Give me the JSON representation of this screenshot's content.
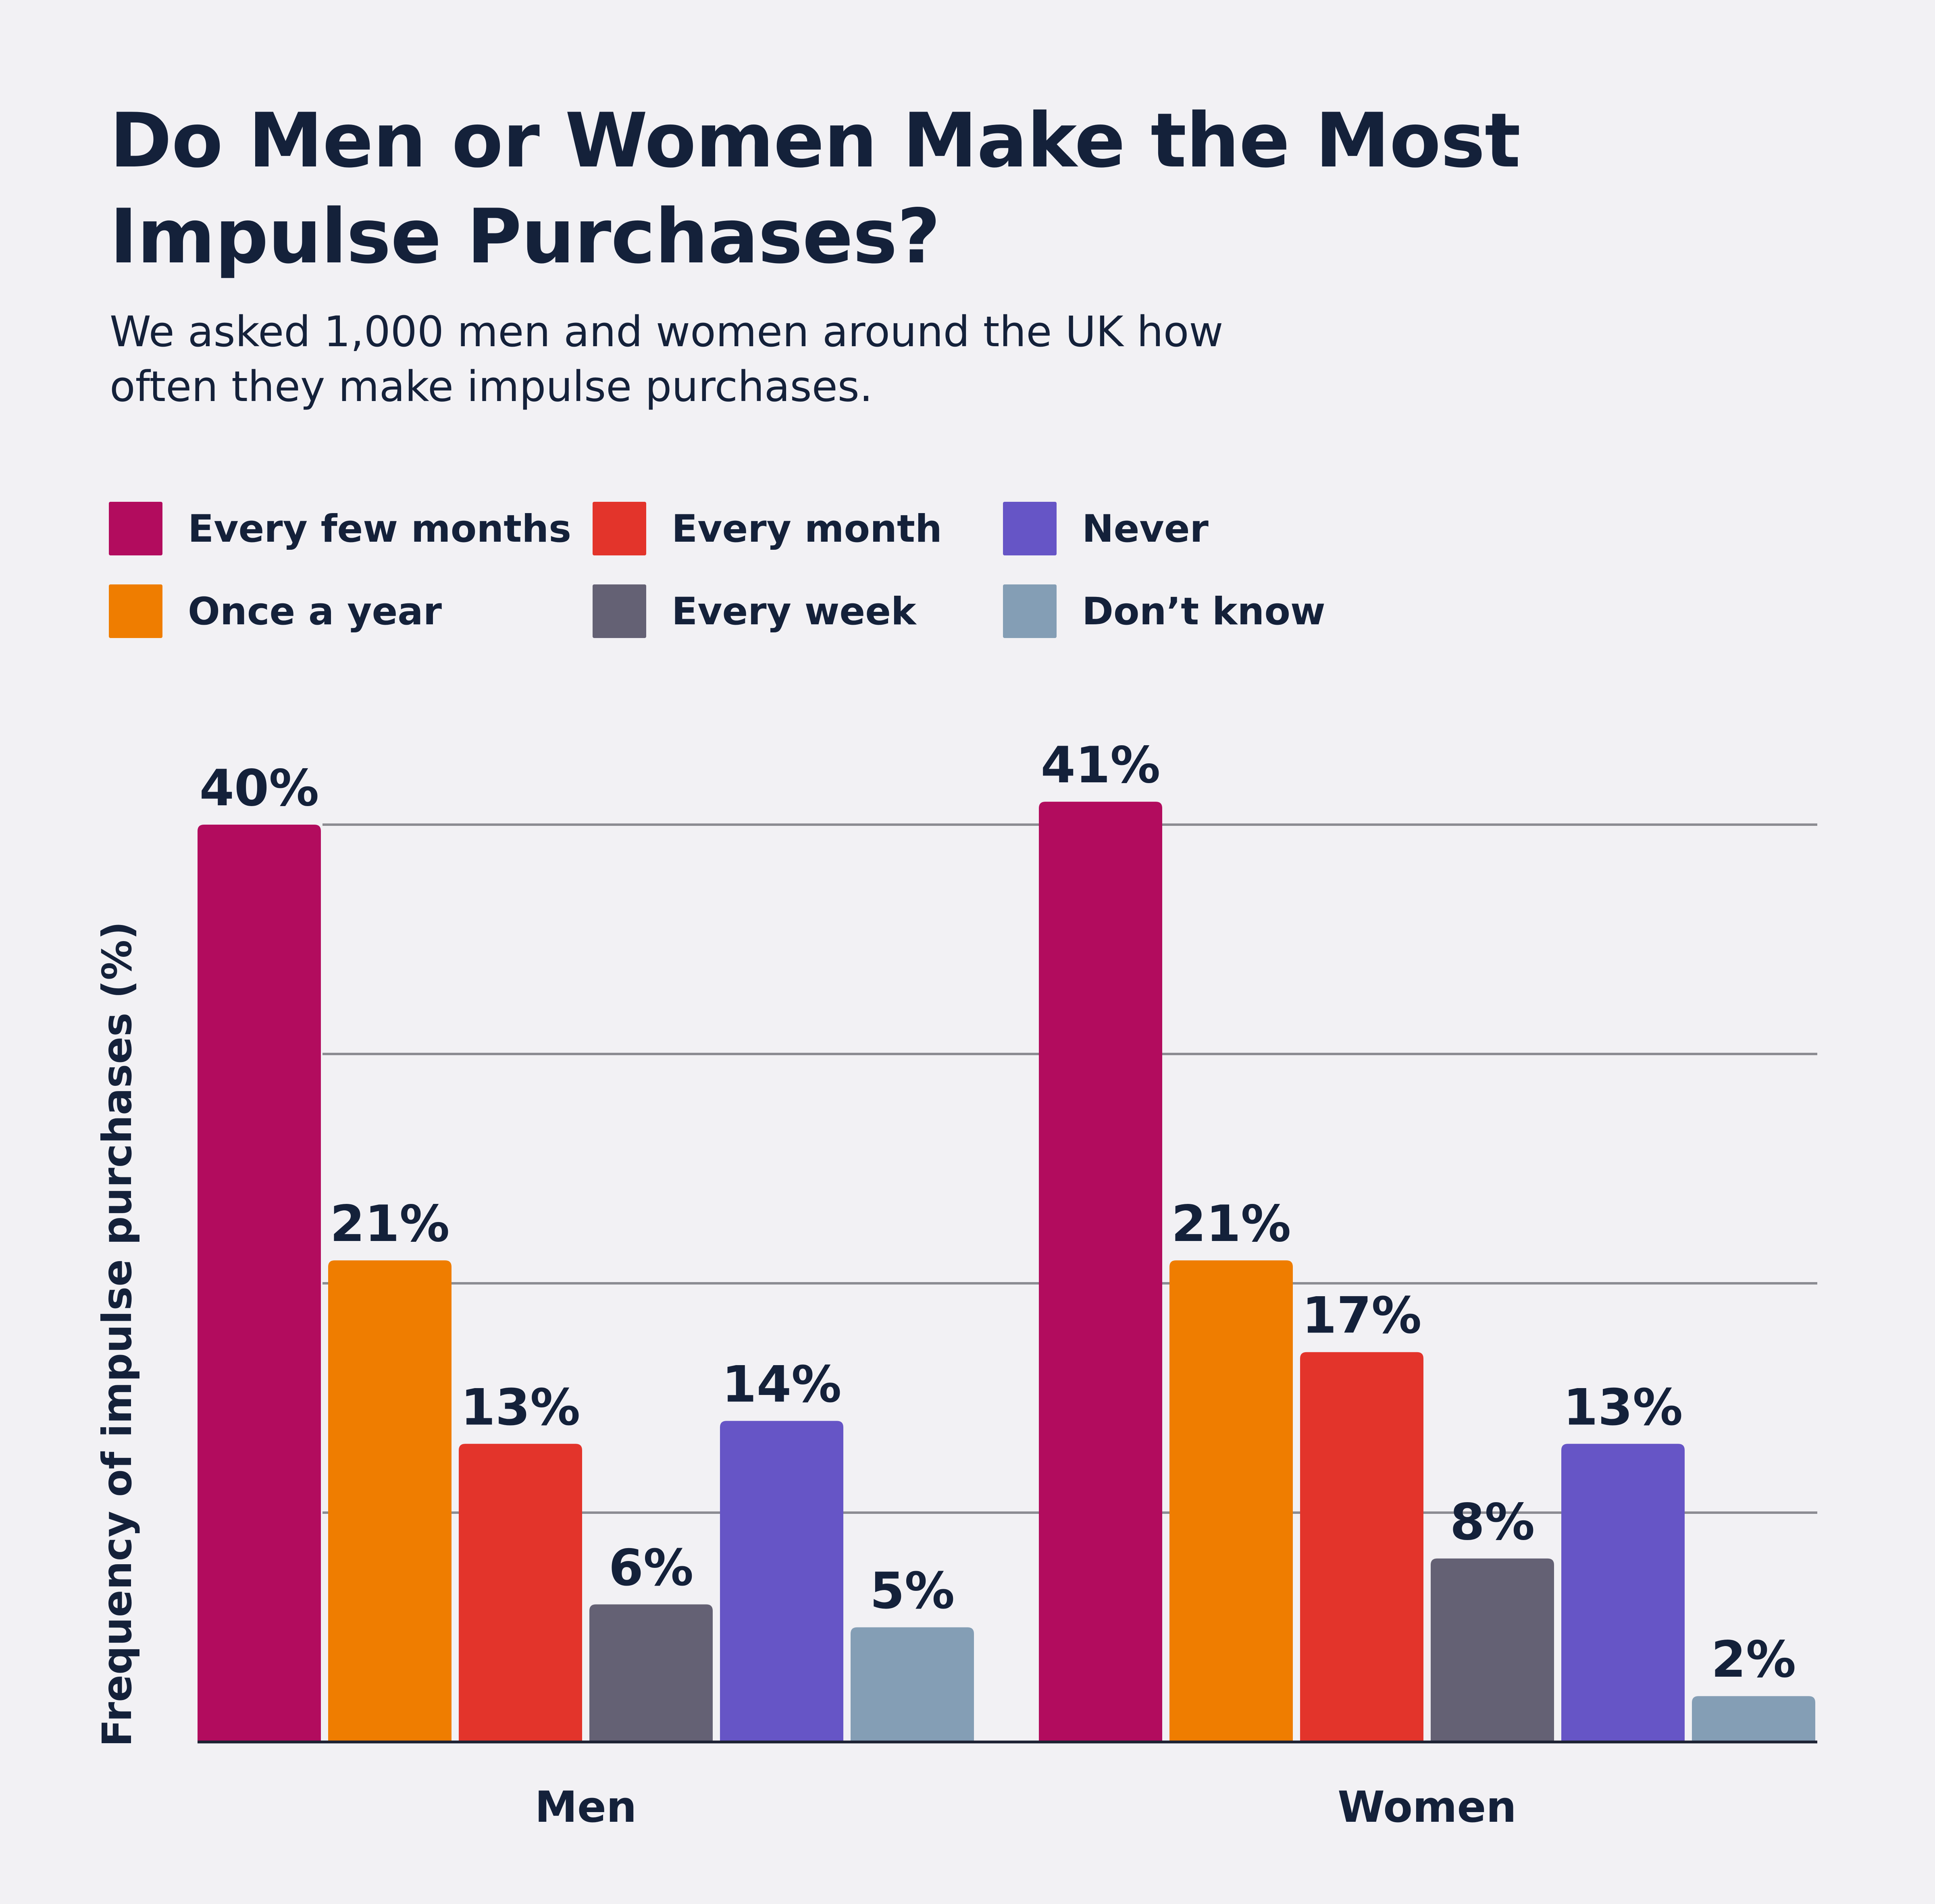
{
  "chart_data": {
    "type": "bar",
    "title": "Do Men or Women Make the Most Impulse Purchases?",
    "subtitle": "We asked 1,000 men and women around the UK how often they make impulse purchases.",
    "xlabel": "",
    "ylabel": "Frequency of impulse purchases (%)",
    "categories": [
      "Men",
      "Women"
    ],
    "series": [
      {
        "name": "Every few months",
        "color": "#b20c5e",
        "values": [
          40,
          41
        ],
        "labels": [
          "40%",
          "41%"
        ]
      },
      {
        "name": "Once a year",
        "color": "#ef7d00",
        "values": [
          21,
          21
        ],
        "labels": [
          "21%",
          "21%"
        ]
      },
      {
        "name": "Every month",
        "color": "#e3342b",
        "values": [
          13,
          17
        ],
        "labels": [
          "13%",
          "17%"
        ]
      },
      {
        "name": "Every week",
        "color": "#646174",
        "values": [
          6,
          8
        ],
        "labels": [
          "6%",
          "8%"
        ]
      },
      {
        "name": "Never",
        "color": "#6655c6",
        "values": [
          14,
          13
        ],
        "labels": [
          "14%",
          "13%"
        ]
      },
      {
        "name": "Don’t know",
        "color": "#849eb5",
        "values": [
          5,
          2
        ],
        "labels": [
          "5%",
          "2%"
        ]
      }
    ],
    "ylim": [
      0,
      40
    ],
    "gridlines": [
      10,
      20,
      30,
      40
    ],
    "grid": true,
    "legend_position": "top"
  }
}
